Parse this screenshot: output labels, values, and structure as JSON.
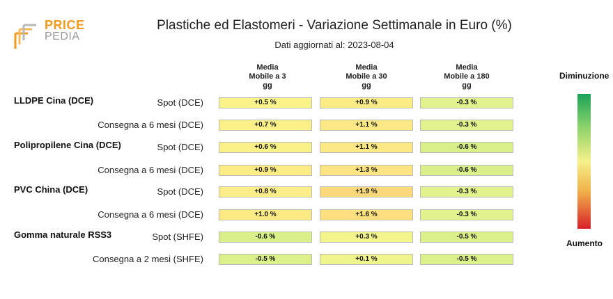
{
  "logo": {
    "line1": "PRICE",
    "line2": "PEDIA"
  },
  "chart_data": {
    "type": "table",
    "title": "Plastiche ed Elastomeri - Variazione Settimanale in Euro (%)",
    "subtitle": "Dati aggiornati al: 2023-08-04",
    "columns": [
      "Media Mobile a 3 gg",
      "Media Mobile a 30 gg",
      "Media Mobile a 180 gg"
    ],
    "scale": {
      "top": "Diminuzione",
      "bottom": "Aumento"
    },
    "rows": [
      {
        "group": "LLDPE Cina (DCE)",
        "label": "Spot (DCE)",
        "values": [
          "+0.5 %",
          "+0.9 %",
          "-0.3 %"
        ],
        "colors": [
          "#faf38a",
          "#fbec86",
          "#e2f28c"
        ]
      },
      {
        "group": "",
        "label": "Consegna a 6 mesi (DCE)",
        "values": [
          "+0.7 %",
          "+1.1 %",
          "-0.3 %"
        ],
        "colors": [
          "#fbef88",
          "#fce884",
          "#e2f28c"
        ]
      },
      {
        "group": "Polipropilene Cina (DCE)",
        "label": "Spot (DCE)",
        "values": [
          "+0.6 %",
          "+1.1 %",
          "-0.6 %"
        ],
        "colors": [
          "#faf189",
          "#fce884",
          "#d9ef8a"
        ]
      },
      {
        "group": "",
        "label": "Consegna a 6 mesi (DCE)",
        "values": [
          "+0.9 %",
          "+1.3 %",
          "-0.6 %"
        ],
        "colors": [
          "#fbec86",
          "#fce482",
          "#d9ef8a"
        ]
      },
      {
        "group": "PVC China (DCE)",
        "label": "Spot (DCE)",
        "values": [
          "+0.8 %",
          "+1.9 %",
          "-0.3 %"
        ],
        "colors": [
          "#fbed87",
          "#fbd87a",
          "#e2f28c"
        ]
      },
      {
        "group": "",
        "label": "Consegna a 6 mesi (DCE)",
        "values": [
          "+1.0 %",
          "+1.6 %",
          "-0.3 %"
        ],
        "colors": [
          "#fcea85",
          "#fcdf7e",
          "#e2f28c"
        ]
      },
      {
        "group": "Gomma naturale RSS3",
        "label": "Spot (SHFE)",
        "values": [
          "-0.6 %",
          "+0.3 %",
          "-0.5 %"
        ],
        "colors": [
          "#d9ef8a",
          "#f4f48c",
          "#dcf08a"
        ]
      },
      {
        "group": "",
        "label": "Consegna a 2 mesi (SHFE)",
        "values": [
          "-0.5 %",
          "+0.1 %",
          "-0.5 %"
        ],
        "colors": [
          "#dcf08a",
          "#eff48c",
          "#dcf08a"
        ]
      }
    ]
  }
}
